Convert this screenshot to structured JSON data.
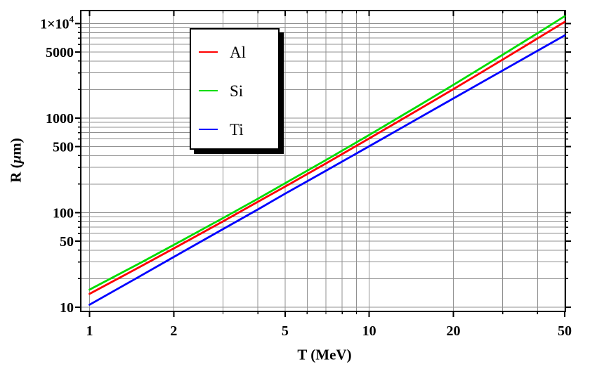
{
  "chart_data": {
    "type": "line",
    "x_scale": "log",
    "y_scale": "log",
    "xlabel": "T (MeV)",
    "ylabel": "R (μm)",
    "ylabel_parts": {
      "pre": "R (",
      "mu": "μ",
      "post": "m)"
    },
    "xlim": [
      0.93,
      50.3
    ],
    "ylim": [
      9,
      13700
    ],
    "grid": true,
    "grid_color": "#909090",
    "frame_color": "#000000",
    "legend_position": "upper-left-inside",
    "x": [
      1,
      1.5,
      2,
      3,
      4,
      5,
      7,
      10,
      15,
      20,
      30,
      40,
      50
    ],
    "series": [
      {
        "name": "Al",
        "color": "#ff0000",
        "values": [
          13.8,
          26.3,
          41.7,
          80.7,
          130,
          188,
          331,
          608,
          1225,
          2020,
          4150,
          6950,
          10400
        ]
      },
      {
        "name": "Si",
        "color": "#00dd00",
        "values": [
          15.3,
          28.8,
          45.5,
          87.5,
          140,
          204,
          359,
          663,
          1347,
          2244,
          4663,
          7900,
          11950
        ]
      },
      {
        "name": "Ti",
        "color": "#0000ff",
        "values": [
          10.6,
          20.9,
          33.9,
          66.8,
          108,
          158,
          277,
          503,
          994,
          1611,
          3180,
          5150,
          7490
        ]
      }
    ],
    "x_ticks": {
      "major": [
        {
          "v": 1,
          "label": "1"
        },
        {
          "v": 2,
          "label": "2"
        },
        {
          "v": 5,
          "label": "5"
        },
        {
          "v": 10,
          "label": "10"
        },
        {
          "v": 20,
          "label": "20"
        },
        {
          "v": 50,
          "label": "50"
        }
      ],
      "minor": [
        3,
        4,
        6,
        7,
        8,
        9,
        30,
        40
      ]
    },
    "y_ticks": {
      "major": [
        {
          "v": 10,
          "label": "10"
        },
        {
          "v": 50,
          "label": "50"
        },
        {
          "v": 100,
          "label": "100"
        },
        {
          "v": 500,
          "label": "500"
        },
        {
          "v": 1000,
          "label": "1000"
        },
        {
          "v": 5000,
          "label": "5000"
        },
        {
          "v": 10000,
          "label": "1×10",
          "sup": "4"
        }
      ],
      "minor": [
        20,
        30,
        40,
        60,
        70,
        80,
        90,
        200,
        300,
        400,
        600,
        700,
        800,
        900,
        2000,
        3000,
        4000,
        6000,
        7000,
        8000,
        9000
      ]
    },
    "legend": [
      {
        "label": "Al",
        "color": "#ff0000"
      },
      {
        "label": "Si",
        "color": "#00dd00"
      },
      {
        "label": "Ti",
        "color": "#0000ff"
      }
    ]
  }
}
